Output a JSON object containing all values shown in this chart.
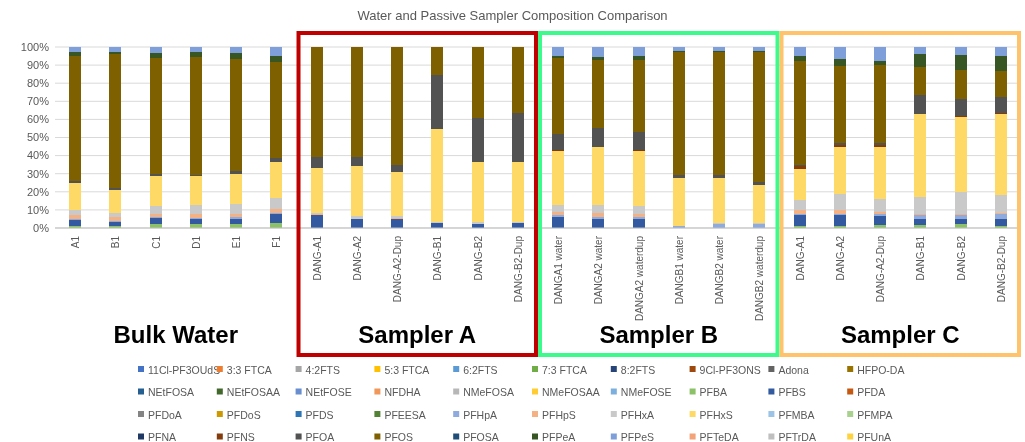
{
  "chart_data": {
    "type": "bar",
    "stacked": true,
    "title": "Water and Passive Sampler Composition Comparison",
    "categories": [
      "A1",
      "B1",
      "C1",
      "D1",
      "E1",
      "F1",
      "DANG-A1",
      "DANG-A2",
      "DANG-A2-Dup",
      "DANG-B1",
      "DANG-B2",
      "DANG-B2-Dup",
      "DANGA1 water",
      "DANGA2 water",
      "DANGA2 waterdup",
      "DANGB1 water",
      "DANGB2 water",
      "DANGB2 waterdup",
      "DANG-A1",
      "DANG-A2",
      "DANG-A2-Dup",
      "DANG-B1",
      "DANG-B2",
      "DANG-B2-Dup"
    ],
    "ylim": [
      0,
      100
    ],
    "yticks": [
      {
        "value": 0,
        "label": "0%"
      },
      {
        "value": 10,
        "label": "10%"
      },
      {
        "value": 20,
        "label": "20%"
      },
      {
        "value": 30,
        "label": "30%"
      },
      {
        "value": 40,
        "label": "40%"
      },
      {
        "value": 50,
        "label": "50%"
      },
      {
        "value": 60,
        "label": "60%"
      },
      {
        "value": 70,
        "label": "70%"
      },
      {
        "value": 80,
        "label": "80%"
      },
      {
        "value": 90,
        "label": "90%"
      },
      {
        "value": 100,
        "label": "100%"
      }
    ],
    "grid": "y",
    "legend": "bottom",
    "annotations": [
      "Bulk Water",
      "Sampler A",
      "Sampler B",
      "Sampler C"
    ],
    "series": [
      {
        "name": "11Cl-PF3OUdS",
        "color": "#4472c4",
        "values": [
          0,
          0,
          0,
          0,
          0,
          0,
          0,
          0,
          0,
          0,
          0,
          0,
          0,
          0,
          0,
          0,
          0,
          0,
          0,
          0,
          0,
          0,
          0,
          0
        ]
      },
      {
        "name": "3:3 FTCA",
        "color": "#ed7d31",
        "values": [
          0,
          0,
          0,
          0,
          0,
          0,
          0,
          0,
          0,
          0,
          0,
          0,
          0,
          0,
          0,
          0,
          0,
          0,
          0,
          0,
          0,
          0,
          0,
          0
        ]
      },
      {
        "name": "4:2FTS",
        "color": "#a5a5a5",
        "values": [
          0,
          0,
          0,
          0,
          0,
          0,
          0,
          0,
          0,
          0,
          0,
          0,
          0,
          0,
          0,
          0,
          0,
          0,
          0,
          0,
          0,
          0,
          0,
          0
        ]
      },
      {
        "name": "5:3 FTCA",
        "color": "#ffc000",
        "values": [
          0,
          0,
          0,
          0,
          0,
          0,
          0,
          0,
          0,
          0,
          0,
          0,
          0,
          0,
          0,
          0,
          0,
          0,
          0,
          0,
          0,
          0,
          0,
          0
        ]
      },
      {
        "name": "6:2FTS",
        "color": "#5b9bd5",
        "values": [
          0,
          0,
          0,
          0,
          0,
          0,
          0,
          0,
          0,
          0,
          0,
          0,
          0,
          0,
          0,
          0,
          0,
          0,
          0,
          0,
          0,
          0,
          0,
          0
        ]
      },
      {
        "name": "7:3 FTCA",
        "color": "#70ad47",
        "values": [
          0,
          0,
          0,
          0,
          0,
          0,
          0,
          0,
          0,
          0,
          0,
          0,
          0,
          0,
          0,
          0,
          0,
          0,
          0,
          0,
          0,
          0,
          0,
          0
        ]
      },
      {
        "name": "8:2FTS",
        "color": "#264478",
        "values": [
          0,
          0,
          0,
          0,
          0,
          0,
          0,
          0,
          0,
          0,
          0,
          0,
          0,
          0,
          0,
          0,
          0,
          0,
          0,
          0,
          0,
          0,
          0,
          0
        ]
      },
      {
        "name": "9Cl-PF3ONS",
        "color": "#9e480e",
        "values": [
          0,
          0,
          0,
          0,
          0,
          0,
          0,
          0,
          0,
          0,
          0,
          0,
          0,
          0,
          0,
          0,
          0,
          0,
          0,
          0,
          0,
          0,
          0,
          0
        ]
      },
      {
        "name": "Adona",
        "color": "#636363",
        "values": [
          0,
          0,
          0,
          0,
          0,
          0,
          0,
          0,
          0,
          0,
          0,
          0,
          0,
          0,
          0,
          0,
          0,
          0,
          0,
          0,
          0,
          0,
          0,
          0
        ]
      },
      {
        "name": "HFPO-DA",
        "color": "#997300",
        "values": [
          0,
          0,
          0,
          0,
          0,
          0,
          0,
          0,
          0,
          0,
          0,
          0,
          0,
          0,
          0,
          0,
          0,
          0,
          0,
          0,
          0,
          0,
          0,
          0
        ]
      },
      {
        "name": "NEtFOSA",
        "color": "#255e91",
        "values": [
          0,
          0,
          0,
          0,
          0,
          0,
          0,
          0,
          0,
          0,
          0,
          0,
          0,
          0,
          0,
          0,
          0,
          0,
          0,
          0,
          0,
          0,
          0,
          0
        ]
      },
      {
        "name": "NEtFOSAA",
        "color": "#43682b",
        "values": [
          0,
          0,
          0,
          0,
          0,
          0,
          0,
          0,
          0,
          0,
          0,
          0,
          0,
          0,
          0,
          0,
          0,
          0,
          0,
          0,
          0,
          0,
          0,
          0
        ]
      },
      {
        "name": "NEtFOSE",
        "color": "#698ed0",
        "values": [
          0,
          0,
          0,
          0,
          0,
          0,
          0,
          0,
          0,
          0,
          0,
          0,
          0,
          0,
          0,
          0,
          0,
          0,
          0,
          0,
          0,
          0,
          0,
          0
        ]
      },
      {
        "name": "NFDHA",
        "color": "#f1975a",
        "values": [
          0,
          0,
          0,
          0,
          0,
          0,
          0,
          0,
          0,
          0,
          0,
          0,
          0,
          0,
          0,
          0,
          0,
          0,
          0,
          0,
          0,
          0,
          0,
          0
        ]
      },
      {
        "name": "NMeFOSA",
        "color": "#b7b7b7",
        "values": [
          0,
          0,
          0,
          0,
          0,
          0,
          0,
          0,
          0,
          0,
          0,
          0,
          0,
          0,
          0,
          0,
          0,
          0,
          0,
          0,
          0,
          0,
          0,
          0
        ]
      },
      {
        "name": "NMeFOSAA",
        "color": "#ffcd33",
        "values": [
          0,
          0,
          0,
          0,
          0,
          0,
          0,
          0,
          0,
          0,
          0,
          0,
          0,
          0,
          0,
          0,
          0,
          0,
          0,
          0,
          0,
          0,
          0,
          0
        ]
      },
      {
        "name": "NMeFOSE",
        "color": "#7cafdd",
        "values": [
          0,
          0,
          0,
          0,
          0,
          0,
          0,
          0,
          0,
          0,
          0,
          0,
          0,
          0,
          0,
          0,
          0,
          0,
          0,
          0,
          0,
          0,
          0,
          0
        ]
      },
      {
        "name": "PFBA",
        "color": "#8cc168",
        "values": [
          1,
          1,
          2,
          2,
          2,
          2.5,
          0,
          0,
          0,
          0,
          0,
          0,
          0,
          0,
          0,
          0,
          0,
          0,
          1,
          1,
          1.5,
          1.5,
          2,
          1
        ]
      },
      {
        "name": "PFBS",
        "color": "#335aa1",
        "values": [
          3.5,
          2.5,
          3.5,
          3,
          3,
          5,
          7,
          5,
          5,
          2.5,
          2,
          2.5,
          6,
          5,
          5,
          0,
          0,
          0,
          6,
          6,
          5,
          3.5,
          3,
          4
        ]
      },
      {
        "name": "PFDA",
        "color": "#c65911",
        "values": [
          0,
          0,
          0,
          0,
          0,
          0,
          0,
          0,
          0,
          0,
          0,
          0,
          0,
          0,
          0,
          0,
          0,
          0,
          0,
          0,
          0,
          0,
          0,
          0
        ]
      },
      {
        "name": "PFDoA",
        "color": "#848484",
        "values": [
          0,
          0,
          0,
          0,
          0,
          0,
          0,
          0,
          0,
          0,
          0,
          0,
          0,
          0,
          0,
          0,
          0,
          0,
          0,
          0,
          0,
          0,
          0,
          0
        ]
      },
      {
        "name": "PFDoS",
        "color": "#cc9a00",
        "values": [
          0,
          0,
          0,
          0,
          0,
          0,
          0,
          0,
          0,
          0,
          0,
          0,
          0,
          0,
          0,
          0,
          0,
          0,
          0,
          0,
          0,
          0,
          0,
          0
        ]
      },
      {
        "name": "PFDS",
        "color": "#2e75b6",
        "values": [
          0,
          0,
          0,
          0,
          0,
          0,
          0,
          0,
          0,
          0,
          0,
          0,
          0,
          0,
          0,
          0,
          0,
          0,
          0,
          0,
          0,
          0,
          0,
          0
        ]
      },
      {
        "name": "PFEESA",
        "color": "#548235",
        "values": [
          0,
          0,
          0,
          0,
          0,
          0,
          0,
          0,
          0,
          0,
          0,
          0,
          0,
          0,
          0,
          0,
          0,
          0,
          0,
          0,
          0,
          0,
          0,
          0
        ]
      },
      {
        "name": "PFHpA",
        "color": "#8faadc",
        "values": [
          0.5,
          0.5,
          0.5,
          0.5,
          1,
          1,
          0,
          0,
          0,
          0,
          0,
          0,
          1,
          1,
          1,
          1,
          2,
          2,
          1,
          1,
          1,
          2,
          2,
          2.5
        ]
      },
      {
        "name": "PFHpS",
        "color": "#f4b183",
        "values": [
          2,
          2,
          2,
          2,
          2,
          2,
          0.5,
          0,
          0.5,
          0,
          0,
          0,
          2,
          2.5,
          2,
          0,
          0,
          0,
          2,
          2,
          1.5,
          1,
          1,
          1
        ]
      },
      {
        "name": "PFHxA",
        "color": "#c9c9c9",
        "values": [
          3,
          2.5,
          4,
          5,
          5,
          6,
          1,
          1.5,
          1,
          1,
          1.5,
          1,
          3.5,
          4,
          4,
          0,
          1,
          1,
          5.5,
          9,
          7,
          9,
          12,
          9.5
        ]
      },
      {
        "name": "PFHxS",
        "color": "#ffd966",
        "values": [
          15,
          12.5,
          16.5,
          16,
          17,
          20,
          24.5,
          28,
          24.5,
          51,
          33,
          33,
          30,
          32,
          30.5,
          26.5,
          24.5,
          21,
          17,
          26,
          29,
          46,
          41.5,
          45
        ]
      },
      {
        "name": "PFMBA",
        "color": "#9dc3e6",
        "values": [
          0,
          0,
          0,
          0,
          0,
          0,
          0,
          0,
          0,
          0,
          0,
          0,
          0,
          0,
          0,
          0,
          0,
          0,
          0,
          0,
          0,
          0,
          0,
          0
        ]
      },
      {
        "name": "PFMPA",
        "color": "#a9d18e",
        "values": [
          0,
          0,
          0,
          0,
          0,
          0,
          0,
          0,
          0,
          0,
          0,
          0,
          0,
          0,
          0,
          0,
          0,
          0,
          0,
          0,
          0,
          0,
          0,
          0
        ]
      },
      {
        "name": "PFNA",
        "color": "#203864",
        "values": [
          0,
          0,
          0,
          0,
          0,
          0,
          0,
          0,
          0,
          0,
          0,
          0,
          0,
          0,
          0,
          0,
          0,
          0,
          0,
          0,
          0,
          0,
          0,
          0
        ]
      },
      {
        "name": "PFNS",
        "color": "#843c0c",
        "values": [
          0,
          0,
          0,
          0,
          0,
          0,
          0,
          0,
          0,
          0,
          0,
          0,
          0.5,
          0.5,
          0.5,
          0,
          0,
          0,
          1.5,
          1,
          1,
          0,
          0.5,
          0.5
        ]
      },
      {
        "name": "PFOA",
        "color": "#525252",
        "values": [
          1,
          1,
          1.5,
          1,
          1.5,
          2,
          6,
          5,
          4,
          30,
          24.5,
          27,
          9,
          10.5,
          10,
          2,
          2,
          1.5,
          1,
          1,
          1,
          10.5,
          9,
          9
        ]
      },
      {
        "name": "PFOS",
        "color": "#7f6000",
        "values": [
          69,
          74,
          64,
          65,
          62,
          53,
          61,
          60.5,
          65,
          15.5,
          39,
          36.5,
          42,
          37.5,
          40,
          68,
          68,
          72,
          57,
          42.5,
          43,
          15.5,
          16.5,
          14.5
        ]
      },
      {
        "name": "PFOSA",
        "color": "#1f4e79",
        "values": [
          0,
          0,
          0,
          0,
          0,
          0,
          0,
          0,
          0,
          0,
          0,
          0,
          0,
          0,
          0,
          0,
          0,
          0,
          0,
          0,
          0,
          0,
          0,
          0
        ]
      },
      {
        "name": "PFPeA",
        "color": "#375623",
        "values": [
          2,
          1,
          2.5,
          2.5,
          3,
          3.5,
          0,
          0,
          0,
          0,
          0,
          0,
          1,
          1.5,
          2,
          0.5,
          0.5,
          0.5,
          3,
          4,
          2.5,
          7,
          8,
          8
        ]
      },
      {
        "name": "PFPeS",
        "color": "#7f9fdb",
        "values": [
          3,
          3,
          3.5,
          3,
          3.5,
          5,
          0,
          0,
          0,
          0,
          0,
          0,
          5,
          5.5,
          5,
          2,
          2,
          2,
          5,
          6.5,
          7.5,
          4,
          4.5,
          5
        ]
      },
      {
        "name": "PFTeDA",
        "color": "#f4a379",
        "values": [
          0,
          0,
          0,
          0,
          0,
          0,
          0,
          0,
          0,
          0,
          0,
          0,
          0,
          0,
          0,
          0,
          0,
          0,
          0,
          0,
          0,
          0,
          0,
          0
        ]
      },
      {
        "name": "PFTrDA",
        "color": "#bfbfbf",
        "values": [
          0,
          0,
          0,
          0,
          0,
          0,
          0,
          0,
          0,
          0,
          0,
          0,
          0,
          0,
          0,
          0,
          0,
          0,
          0,
          0,
          0,
          0,
          0,
          0
        ]
      },
      {
        "name": "PFUnA",
        "color": "#ffd33f",
        "values": [
          0,
          0,
          0,
          0,
          0,
          0,
          0,
          0,
          0,
          0,
          0,
          0,
          0,
          0,
          0,
          0,
          0,
          0,
          0,
          0,
          0,
          0,
          0,
          0
        ]
      }
    ]
  }
}
